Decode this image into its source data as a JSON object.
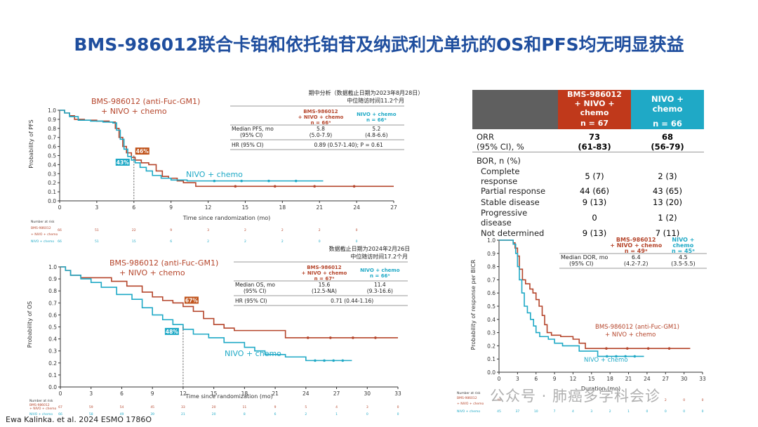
{
  "slide": {
    "title": "BMS-986012联合卡铂和依托铂苷及纳武利尤单抗的OS和PFS均无明显获益",
    "footer": "Ewa Kalinka. et al. 2024 ESMO 1786O",
    "watermark": "公众号 · 肺癌多学科会诊"
  },
  "colors": {
    "bms": "#b5452b",
    "nivo": "#1fa9c6",
    "title": "#1f4e9e"
  },
  "pfs_table": {
    "header1": "期中分析（数据截止日期为2023年8月28日）",
    "header2": "中位随访时间11.2个月",
    "col_bms": [
      "BMS-986012",
      "+ NIVO + chemo",
      "n = 66ᵃ"
    ],
    "col_nivo": [
      "NIVO + chemo",
      "n = 66ᵃ"
    ],
    "row1_label": [
      "Median PFS, mo",
      "(95% CI)"
    ],
    "row1_bms": [
      "5.8",
      "(5.0-7.9)"
    ],
    "row1_nivo": [
      "5.2",
      "(4.8-6.6)"
    ],
    "row2_label": "HR (95% CI)",
    "row2_value": "0.89 (0.57-1.40); P = 0.61"
  },
  "os_table": {
    "header1": "数据截止日期为2024年2月26日",
    "header2": "中位随访时间17.2个月",
    "col_bms": [
      "BMS-986012",
      "+ NIVO + chemo",
      "n = 67ᵃ"
    ],
    "col_nivo": [
      "NIVO + chemo",
      "n = 66ᵃ"
    ],
    "row1_label": [
      "Median OS, mo",
      "(95% CI)"
    ],
    "row1_bms": [
      "15.6",
      "(12.5-NA)"
    ],
    "row1_nivo": [
      "11.4",
      "(9.3-16.6)"
    ],
    "row2_label": "HR (95% CI)",
    "row2_value": "0.71 (0.44-1.16)"
  },
  "dor_table": {
    "col_bms": [
      "BMS-986012",
      "+ NIVO + chemo",
      "n = 49ᵃ"
    ],
    "col_nivo": [
      "NIVO +",
      "chemo",
      "n = 45ᵃ"
    ],
    "row1_label": [
      "Median DOR, mo",
      "(95% CI)"
    ],
    "row1_bms": [
      "6.4",
      "(4.2-7.2)"
    ],
    "row1_nivo": [
      "4.5",
      "(3.5-5.5)"
    ]
  },
  "orr_table": {
    "col_bms": [
      "BMS-986012",
      "+ NIVO + chemo"
    ],
    "col_nivo": "NIVO + chemo",
    "n_bms": "n = 67",
    "n_nivo": "n = 66",
    "orr_label": [
      "ORR",
      "(95% CI), %"
    ],
    "orr_bms": [
      "73",
      "(61-83)"
    ],
    "orr_nivo": [
      "68",
      "(56-79)"
    ],
    "bor_label": "BOR, n (%)",
    "rows": [
      {
        "label": "Complete response",
        "bms": "5 (7)",
        "nivo": "2 (3)"
      },
      {
        "label": "Partial response",
        "bms": "44 (66)",
        "nivo": "43 (65)"
      },
      {
        "label": "Stable disease",
        "bms": "9 (13)",
        "nivo": "13 (20)"
      },
      {
        "label": "Progressive disease",
        "bms": "0",
        "nivo": "1 (2)"
      },
      {
        "label": "Not determined",
        "bms": "9 (13)",
        "nivo": "7 (11)"
      }
    ]
  },
  "chart_data": [
    {
      "type": "line",
      "name": "pfs",
      "ylabel": "Probability of PFS",
      "xlabel": "Time since randomization (mo)",
      "xlim": [
        0,
        27
      ],
      "ylim": [
        0,
        1.0
      ],
      "xticks": [
        0,
        3,
        6,
        9,
        12,
        15,
        18,
        21,
        24,
        27
      ],
      "yticks": [
        0,
        0.1,
        0.2,
        0.3,
        0.4,
        0.5,
        0.6,
        0.7,
        0.8,
        0.9,
        1.0
      ],
      "bms_label": [
        "BMS-986012 (anti-Fuc-GM1)",
        "+ NIVO + chemo"
      ],
      "nivo_label": "NIVO + chemo",
      "bms_callout": "46%",
      "nivo_callout": "43%",
      "callout_x": 6,
      "series": [
        {
          "name": "bms",
          "x": [
            0,
            0.4,
            0.8,
            1.2,
            2,
            3,
            4,
            4.5,
            4.8,
            5.1,
            5.4,
            5.8,
            6.1,
            6.6,
            7.2,
            7.8,
            8.3,
            8.8,
            9.5,
            10,
            11,
            27
          ],
          "y": [
            1.0,
            0.97,
            0.94,
            0.9,
            0.89,
            0.88,
            0.87,
            0.8,
            0.7,
            0.6,
            0.53,
            0.48,
            0.45,
            0.42,
            0.4,
            0.33,
            0.27,
            0.25,
            0.22,
            0.2,
            0.16,
            0.16
          ]
        },
        {
          "name": "nivo",
          "x": [
            0,
            0.4,
            0.8,
            1.5,
            2.5,
            3.5,
            4.3,
            4.6,
            4.9,
            5.2,
            5.5,
            5.8,
            6.1,
            6.5,
            7,
            7.5,
            8.2,
            9,
            10.3,
            21.3
          ],
          "y": [
            1.0,
            0.97,
            0.93,
            0.89,
            0.88,
            0.87,
            0.86,
            0.78,
            0.68,
            0.57,
            0.49,
            0.45,
            0.42,
            0.37,
            0.33,
            0.28,
            0.25,
            0.23,
            0.22,
            0.22
          ]
        }
      ],
      "risk_header": "Number at risk",
      "risk_bms_label": [
        "BMS-986012",
        "+ NIVO + chemo"
      ],
      "risk_nivo_label": "NIVO + chemo",
      "risk_bms": [
        "66",
        "51",
        "22",
        "9",
        "3",
        "2",
        "2",
        "2",
        "0"
      ],
      "risk_nivo": [
        "66",
        "51",
        "15",
        "6",
        "2",
        "2",
        "2",
        "0",
        "0"
      ]
    },
    {
      "type": "line",
      "name": "os",
      "ylabel": "Probability of OS",
      "xlabel": "Time since randomization (mo)",
      "xlim": [
        0,
        33
      ],
      "ylim": [
        0,
        1.0
      ],
      "xticks": [
        0,
        3,
        6,
        9,
        12,
        15,
        18,
        21,
        24,
        27,
        30,
        33
      ],
      "yticks": [
        0,
        0.1,
        0.2,
        0.3,
        0.4,
        0.5,
        0.6,
        0.7,
        0.8,
        0.9,
        1.0
      ],
      "bms_label": [
        "BMS-986012 (anti-Fuc-GM1)",
        "+ NIVO + chemo"
      ],
      "nivo_label": "NIVO + chemo",
      "bms_callout": "67%",
      "nivo_callout": "48%",
      "callout_x": 12,
      "series": [
        {
          "name": "bms",
          "x": [
            0,
            0.5,
            1,
            2,
            3.5,
            5,
            6.5,
            8,
            9,
            10,
            11,
            12,
            13,
            14,
            15,
            16,
            17,
            20,
            22,
            33
          ],
          "y": [
            1.0,
            0.97,
            0.93,
            0.91,
            0.91,
            0.88,
            0.84,
            0.79,
            0.75,
            0.72,
            0.7,
            0.67,
            0.63,
            0.57,
            0.52,
            0.49,
            0.47,
            0.47,
            0.41,
            0.41
          ]
        },
        {
          "name": "nivo",
          "x": [
            0,
            0.5,
            1,
            2,
            3,
            4,
            5.5,
            7,
            8,
            9,
            10,
            11,
            12,
            13,
            14.5,
            16,
            18,
            19,
            20,
            22,
            24,
            28.5
          ],
          "y": [
            1.0,
            0.97,
            0.93,
            0.9,
            0.87,
            0.83,
            0.77,
            0.73,
            0.66,
            0.6,
            0.56,
            0.52,
            0.48,
            0.44,
            0.41,
            0.37,
            0.33,
            0.3,
            0.27,
            0.25,
            0.22,
            0.22
          ]
        }
      ],
      "risk_header": "Number at risk",
      "risk_bms_label": [
        "BMS-986012",
        "+ NIVO + chemo"
      ],
      "risk_nivo_label": "NIVO + chemo",
      "risk_bms": [
        "67",
        "59",
        "54",
        "45",
        "33",
        "20",
        "11",
        "9",
        "5",
        "4",
        "3",
        "0"
      ],
      "risk_nivo": [
        "66",
        "58",
        "49",
        "39",
        "21",
        "20",
        "8",
        "6",
        "2",
        "1",
        "0",
        "0"
      ]
    },
    {
      "type": "line",
      "name": "dor",
      "ylabel": "Probability of response per BICR",
      "xlabel": "Duration (mo)",
      "xlim": [
        0,
        33
      ],
      "ylim": [
        0,
        1.0
      ],
      "xticks": [
        0,
        3,
        6,
        9,
        12,
        15,
        18,
        21,
        24,
        27,
        30,
        33
      ],
      "yticks": [
        0,
        0.1,
        0.2,
        0.3,
        0.4,
        0.5,
        0.6,
        0.7,
        0.8,
        0.9,
        1.0
      ],
      "bms_label": [
        "BMS-986012 (anti-Fuc-GM1)",
        "+ NIVO + chemo"
      ],
      "nivo_label": "NIVO + chemo",
      "series": [
        {
          "name": "bms",
          "x": [
            0,
            1.8,
            2.3,
            2.6,
            3,
            3.3,
            3.8,
            4.3,
            5,
            5.5,
            6,
            6.5,
            7,
            7.4,
            7.8,
            8.5,
            10,
            12,
            13,
            14,
            31
          ],
          "y": [
            1.0,
            1.0,
            0.98,
            0.94,
            0.88,
            0.78,
            0.7,
            0.67,
            0.63,
            0.6,
            0.55,
            0.5,
            0.43,
            0.36,
            0.3,
            0.28,
            0.27,
            0.25,
            0.22,
            0.18,
            0.18
          ]
        },
        {
          "name": "nivo",
          "x": [
            0,
            1.8,
            2.3,
            2.7,
            3,
            3.3,
            3.7,
            4.1,
            4.6,
            5.1,
            5.6,
            6,
            6.6,
            7.1,
            8,
            9,
            10.3,
            13,
            16,
            23.5
          ],
          "y": [
            1.0,
            1.0,
            0.97,
            0.9,
            0.8,
            0.7,
            0.6,
            0.5,
            0.45,
            0.4,
            0.35,
            0.3,
            0.27,
            0.27,
            0.25,
            0.22,
            0.2,
            0.16,
            0.12,
            0.12
          ]
        }
      ],
      "risk_header": "Number at risk",
      "risk_bms_label": [
        "BMS-986012",
        "+ NIVO + chemo"
      ],
      "risk_nivo_label": "NIVO + chemo",
      "risk_bms": [
        "49",
        "",
        "",
        "",
        "",
        "",
        "",
        "",
        "",
        "2",
        "0",
        "0"
      ],
      "risk_nivo": [
        "45",
        "37",
        "10",
        "7",
        "4",
        "3",
        "2",
        "1",
        "0",
        "0",
        "0",
        "0"
      ]
    }
  ]
}
